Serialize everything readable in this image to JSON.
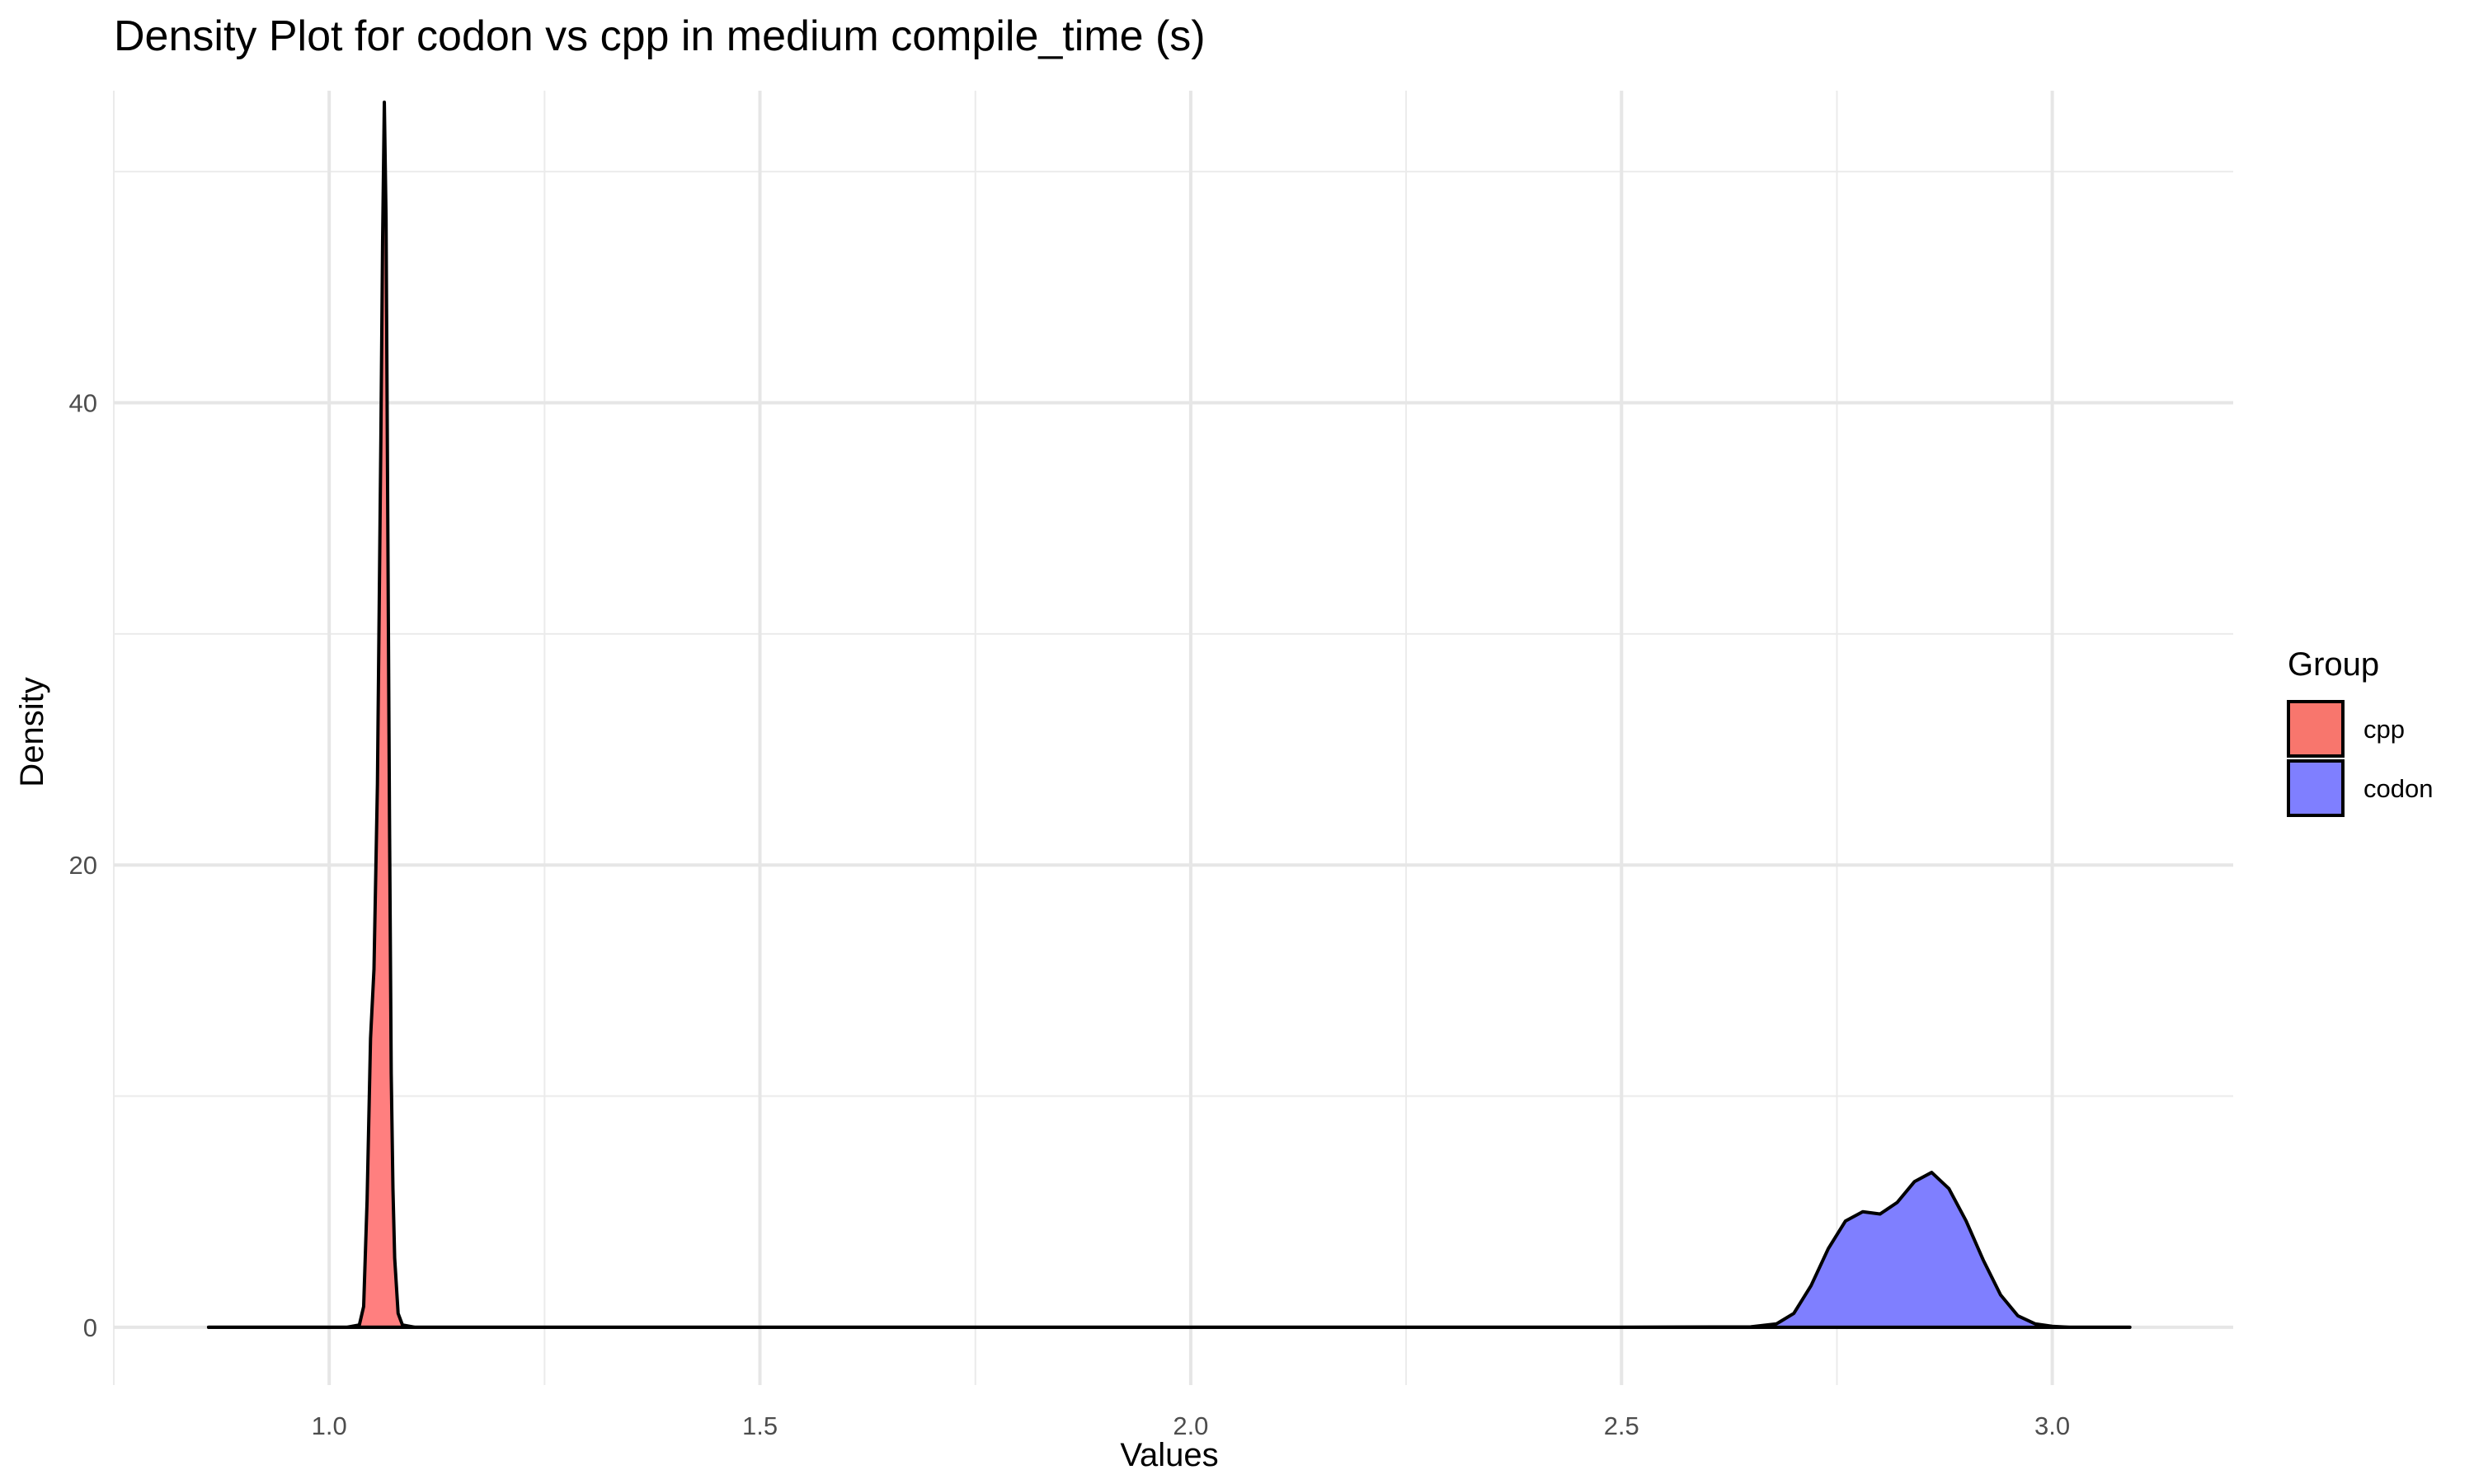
{
  "chart_data": {
    "type": "area",
    "chart_kind": "density",
    "title": "Density Plot for codon vs cpp in medium compile_time (s)",
    "xlabel": "Values",
    "ylabel": "Density",
    "xlim": [
      0.75,
      3.21
    ],
    "ylim": [
      -2.5,
      53.5
    ],
    "x_ticks": [
      1.0,
      1.5,
      2.0,
      2.5,
      3.0
    ],
    "x_tick_labels": [
      "1.0",
      "1.5",
      "2.0",
      "2.5",
      "3.0"
    ],
    "y_ticks": [
      0,
      20,
      40
    ],
    "y_tick_labels": [
      "0",
      "20",
      "40"
    ],
    "grid": true,
    "legend": {
      "title": "Group",
      "placement": "right",
      "entries": [
        {
          "label": "cpp",
          "color": "#F8766D"
        },
        {
          "label": "codon",
          "color": "#7F7FFF"
        }
      ]
    },
    "series": [
      {
        "name": "cpp",
        "fill": "#FF7F7F",
        "x": [
          0.86,
          1.0,
          1.02,
          1.035,
          1.04,
          1.044,
          1.048,
          1.052,
          1.056,
          1.06,
          1.062,
          1.064,
          1.066,
          1.068,
          1.07,
          1.072,
          1.074,
          1.076,
          1.08,
          1.085,
          1.1,
          1.3,
          1.6,
          2.0,
          2.4,
          2.7,
          2.9,
          3.09
        ],
        "y": [
          0,
          0,
          0,
          0.1,
          0.9,
          5.5,
          12.5,
          15.5,
          23.5,
          38.5,
          47.0,
          53.0,
          48.0,
          35.0,
          22.0,
          11.0,
          6.0,
          3.0,
          0.6,
          0.1,
          0,
          0,
          0,
          0,
          0,
          0,
          0,
          0
        ]
      },
      {
        "name": "codon",
        "fill": "#7F7FFF",
        "x": [
          0.86,
          1.5,
          2.0,
          2.5,
          2.65,
          2.68,
          2.7,
          2.72,
          2.74,
          2.76,
          2.78,
          2.8,
          2.82,
          2.84,
          2.86,
          2.88,
          2.9,
          2.92,
          2.94,
          2.96,
          2.98,
          3.0,
          3.02,
          3.09
        ],
        "y": [
          0,
          0,
          0,
          0,
          0.02,
          0.15,
          0.6,
          1.8,
          3.4,
          4.6,
          5.0,
          4.9,
          5.4,
          6.3,
          6.7,
          6.0,
          4.6,
          2.9,
          1.4,
          0.5,
          0.15,
          0.04,
          0,
          0
        ]
      }
    ]
  }
}
